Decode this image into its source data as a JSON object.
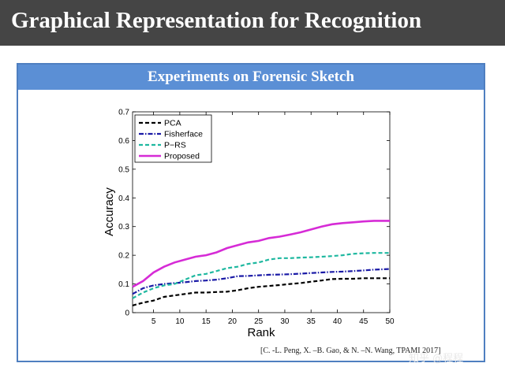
{
  "slide": {
    "title": "Graphical Representation for Recognition",
    "panel_title": "Experiments on Forensic Sketch",
    "citation": "[C. -L. Peng, X. –B. Gao, & N. –N. Wang, TPAMI 2017]",
    "watermark": "知乎 @程程"
  },
  "chart_data": {
    "type": "line",
    "title": "",
    "xlabel": "Rank",
    "ylabel": "Accuracy",
    "xlim": [
      1,
      50
    ],
    "ylim": [
      0,
      0.7
    ],
    "xticks": [
      5,
      10,
      15,
      20,
      25,
      30,
      35,
      40,
      45,
      50
    ],
    "yticks": [
      0,
      0.1,
      0.2,
      0.3,
      0.4,
      0.5,
      0.6,
      0.7
    ],
    "ytick_labels": [
      "0",
      "0.1",
      "0.2",
      "0.3",
      "0.4",
      "0.5",
      "0.6",
      "0.7"
    ],
    "grid": false,
    "legend_position": "top-left",
    "x": [
      1,
      3,
      5,
      7,
      9,
      11,
      13,
      15,
      17,
      19,
      21,
      23,
      25,
      27,
      29,
      31,
      33,
      35,
      37,
      39,
      41,
      43,
      45,
      47,
      50
    ],
    "series": [
      {
        "name": "PCA",
        "color": "#000000",
        "style": "dashed",
        "values": [
          0.025,
          0.035,
          0.042,
          0.055,
          0.06,
          0.065,
          0.07,
          0.07,
          0.072,
          0.073,
          0.078,
          0.085,
          0.09,
          0.093,
          0.096,
          0.1,
          0.103,
          0.108,
          0.112,
          0.117,
          0.118,
          0.118,
          0.12,
          0.12,
          0.12
        ]
      },
      {
        "name": "Fisherface",
        "color": "#1a1aa6",
        "style": "dashdot",
        "values": [
          0.065,
          0.085,
          0.095,
          0.1,
          0.103,
          0.106,
          0.11,
          0.112,
          0.115,
          0.12,
          0.127,
          0.128,
          0.13,
          0.132,
          0.133,
          0.134,
          0.136,
          0.138,
          0.14,
          0.142,
          0.143,
          0.145,
          0.147,
          0.15,
          0.152
        ]
      },
      {
        "name": "P−RS",
        "color": "#1fb8a0",
        "style": "dashed",
        "values": [
          0.05,
          0.07,
          0.085,
          0.095,
          0.1,
          0.115,
          0.13,
          0.135,
          0.145,
          0.155,
          0.16,
          0.17,
          0.175,
          0.185,
          0.19,
          0.19,
          0.192,
          0.193,
          0.195,
          0.197,
          0.2,
          0.205,
          0.207,
          0.208,
          0.208
        ]
      },
      {
        "name": "Proposed",
        "color": "#d62bd6",
        "style": "solid",
        "values": [
          0.09,
          0.11,
          0.14,
          0.16,
          0.175,
          0.185,
          0.195,
          0.2,
          0.21,
          0.225,
          0.235,
          0.245,
          0.25,
          0.26,
          0.265,
          0.272,
          0.28,
          0.29,
          0.3,
          0.308,
          0.312,
          0.315,
          0.318,
          0.32,
          0.32
        ]
      }
    ]
  }
}
